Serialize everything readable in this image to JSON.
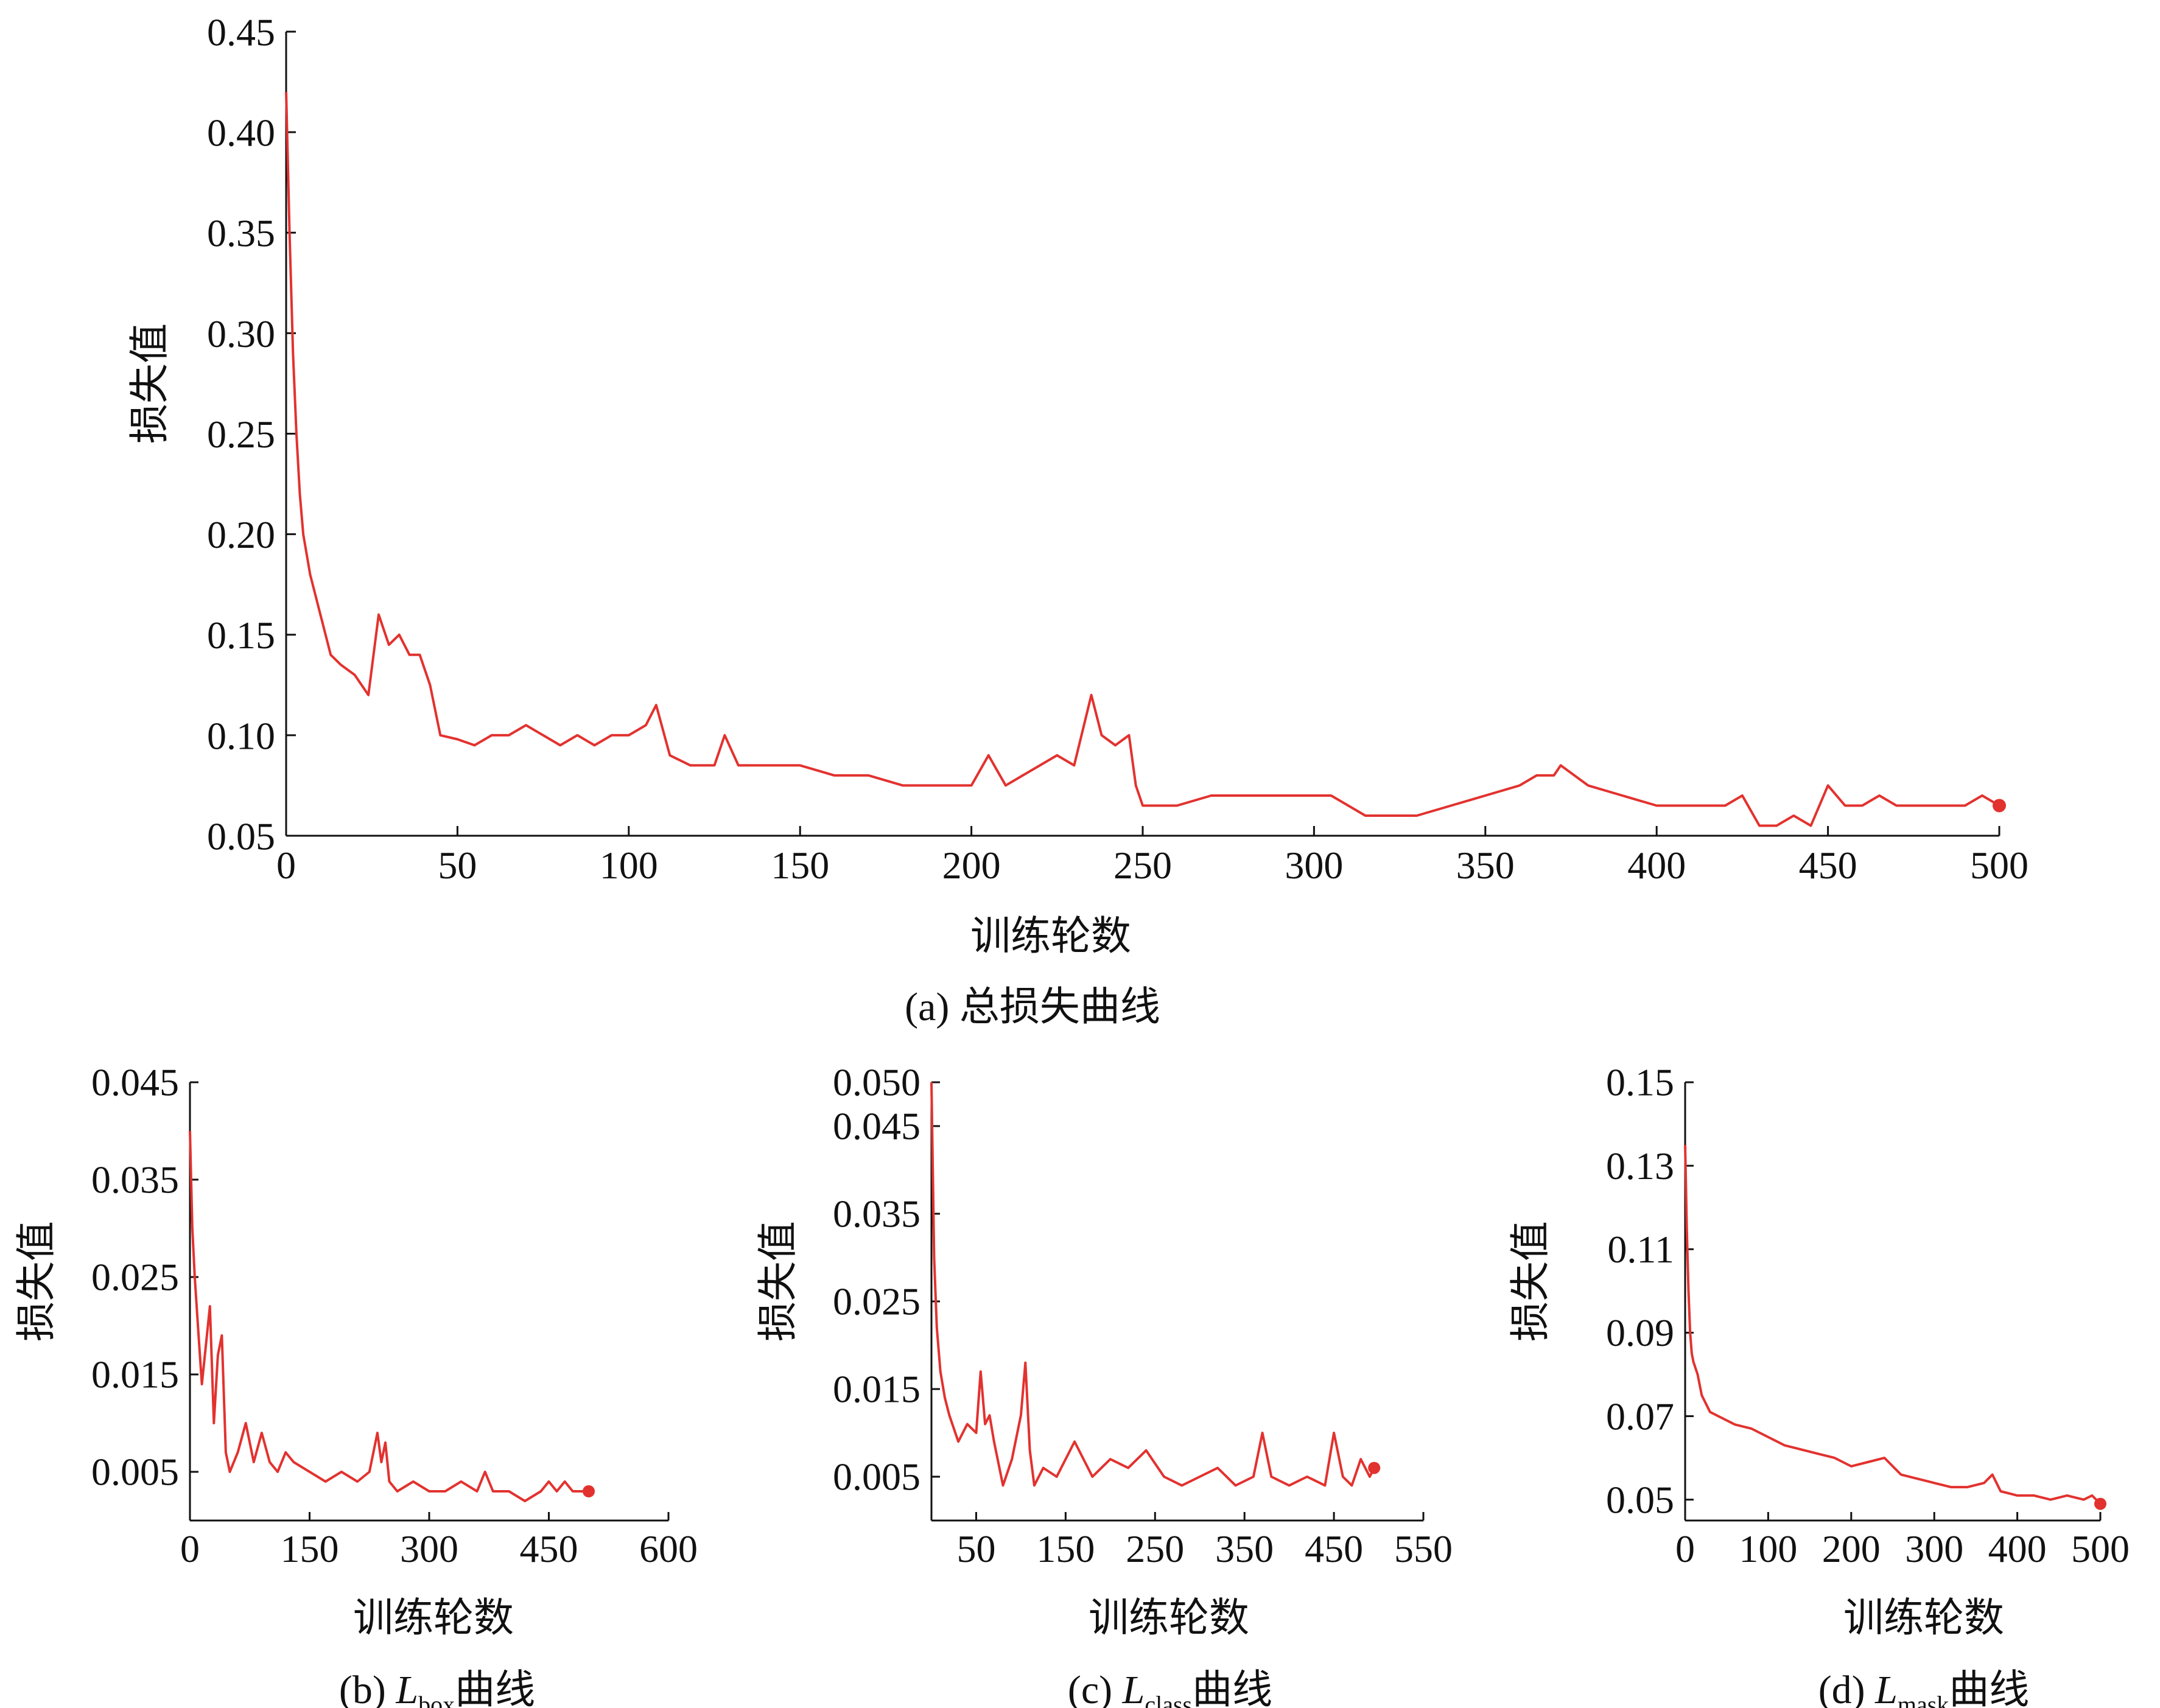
{
  "colors": {
    "line": "#e2322f",
    "axis": "#111111",
    "text": "#111111"
  },
  "chart_data": [
    {
      "id": "a",
      "type": "line",
      "caption": "(a) 总损失曲线",
      "xlabel": "训练轮数",
      "ylabel": "损失值",
      "xlim": [
        0,
        500
      ],
      "ylim": [
        0.05,
        0.45
      ],
      "xticks": [
        "0",
        "50",
        "100",
        "150",
        "200",
        "250",
        "300",
        "350",
        "400",
        "450",
        "500"
      ],
      "yticks": [
        "0.05",
        "0.10",
        "0.15",
        "0.20",
        "0.25",
        "0.30",
        "0.35",
        "0.40",
        "0.45"
      ],
      "grid": false,
      "series": [
        {
          "x": [
            0,
            1,
            2,
            3,
            4,
            5,
            7,
            10,
            13,
            16,
            20,
            24,
            27,
            30,
            33,
            36,
            39,
            42,
            45,
            50,
            55,
            60,
            65,
            70,
            75,
            80,
            85,
            90,
            95,
            100,
            105,
            108,
            112,
            118,
            125,
            128,
            132,
            140,
            150,
            160,
            170,
            180,
            190,
            200,
            205,
            210,
            215,
            220,
            225,
            230,
            235,
            238,
            242,
            246,
            248,
            250,
            255,
            260,
            270,
            280,
            290,
            300,
            305,
            310,
            315,
            320,
            325,
            330,
            340,
            350,
            360,
            365,
            370,
            372,
            380,
            390,
            400,
            410,
            420,
            425,
            430,
            435,
            440,
            445,
            450,
            455,
            460,
            465,
            470,
            475,
            480,
            490,
            495,
            500
          ],
          "y": [
            0.42,
            0.35,
            0.29,
            0.25,
            0.22,
            0.2,
            0.18,
            0.16,
            0.14,
            0.135,
            0.13,
            0.12,
            0.16,
            0.145,
            0.15,
            0.14,
            0.14,
            0.125,
            0.1,
            0.098,
            0.095,
            0.1,
            0.1,
            0.105,
            0.1,
            0.095,
            0.1,
            0.095,
            0.1,
            0.1,
            0.105,
            0.115,
            0.09,
            0.085,
            0.085,
            0.1,
            0.085,
            0.085,
            0.085,
            0.08,
            0.08,
            0.075,
            0.075,
            0.075,
            0.09,
            0.075,
            0.08,
            0.085,
            0.09,
            0.085,
            0.12,
            0.1,
            0.095,
            0.1,
            0.075,
            0.065,
            0.065,
            0.065,
            0.07,
            0.07,
            0.07,
            0.07,
            0.07,
            0.065,
            0.06,
            0.06,
            0.06,
            0.06,
            0.065,
            0.07,
            0.075,
            0.08,
            0.08,
            0.085,
            0.075,
            0.07,
            0.065,
            0.065,
            0.065,
            0.07,
            0.055,
            0.055,
            0.06,
            0.055,
            0.075,
            0.065,
            0.065,
            0.07,
            0.065,
            0.065,
            0.065,
            0.065,
            0.07,
            0.065
          ]
        }
      ]
    },
    {
      "id": "b",
      "type": "line",
      "caption": "(b) ",
      "caption_symbol": "L",
      "caption_subscript": "box",
      "caption_suffix": "曲线",
      "xlabel": "训练轮数",
      "ylabel": "损失值",
      "xlim": [
        0,
        600
      ],
      "ylim": [
        0.0,
        0.045
      ],
      "xticks": [
        "0",
        "150",
        "300",
        "450",
        "600"
      ],
      "yticks": [
        "0.005",
        "0.015",
        "0.025",
        "0.035",
        "0.045"
      ],
      "grid": false,
      "series": [
        {
          "x": [
            0,
            3,
            6,
            10,
            15,
            20,
            25,
            30,
            35,
            40,
            45,
            50,
            60,
            70,
            80,
            90,
            100,
            110,
            120,
            130,
            150,
            170,
            190,
            210,
            225,
            235,
            240,
            245,
            250,
            260,
            280,
            300,
            320,
            340,
            360,
            370,
            380,
            400,
            420,
            440,
            450,
            460,
            470,
            480,
            490,
            500
          ],
          "y": [
            0.04,
            0.03,
            0.025,
            0.02,
            0.014,
            0.018,
            0.022,
            0.01,
            0.017,
            0.019,
            0.007,
            0.005,
            0.007,
            0.01,
            0.006,
            0.009,
            0.006,
            0.005,
            0.007,
            0.006,
            0.005,
            0.004,
            0.005,
            0.004,
            0.005,
            0.009,
            0.006,
            0.008,
            0.004,
            0.003,
            0.004,
            0.003,
            0.003,
            0.004,
            0.003,
            0.005,
            0.003,
            0.003,
            0.002,
            0.003,
            0.004,
            0.003,
            0.004,
            0.003,
            0.003,
            0.003
          ]
        }
      ]
    },
    {
      "id": "c",
      "type": "line",
      "caption": "(c) ",
      "caption_symbol": "L",
      "caption_subscript": "class",
      "caption_suffix": "曲线",
      "xlabel": "训练轮数",
      "ylabel": "损失值",
      "xlim": [
        0,
        550
      ],
      "ylim": [
        0.0,
        0.05
      ],
      "xticks": [
        "50",
        "150",
        "250",
        "350",
        "450",
        "550"
      ],
      "xtick_values": [
        50,
        150,
        250,
        350,
        450,
        550
      ],
      "yticks": [
        "0.005",
        "0.015",
        "0.025",
        "0.035",
        "0.045",
        "0.050"
      ],
      "ytick_values": [
        0.005,
        0.015,
        0.025,
        0.035,
        0.045,
        0.05
      ],
      "grid": false,
      "series": [
        {
          "x": [
            0,
            3,
            6,
            10,
            15,
            20,
            30,
            40,
            50,
            55,
            60,
            65,
            70,
            80,
            90,
            100,
            105,
            110,
            115,
            125,
            140,
            160,
            180,
            200,
            220,
            240,
            260,
            280,
            300,
            320,
            340,
            360,
            370,
            380,
            400,
            420,
            440,
            450,
            460,
            470,
            480,
            490,
            495
          ],
          "y": [
            0.05,
            0.03,
            0.022,
            0.017,
            0.014,
            0.012,
            0.009,
            0.011,
            0.01,
            0.017,
            0.011,
            0.012,
            0.009,
            0.004,
            0.007,
            0.012,
            0.018,
            0.008,
            0.004,
            0.006,
            0.005,
            0.009,
            0.005,
            0.007,
            0.006,
            0.008,
            0.005,
            0.004,
            0.005,
            0.006,
            0.004,
            0.005,
            0.01,
            0.005,
            0.004,
            0.005,
            0.004,
            0.01,
            0.005,
            0.004,
            0.007,
            0.005,
            0.006
          ]
        }
      ]
    },
    {
      "id": "d",
      "type": "line",
      "caption": "(d) ",
      "caption_symbol": "L",
      "caption_subscript": "mask",
      "caption_suffix": "曲线",
      "xlabel": "训练轮数",
      "ylabel": "损失值",
      "xlim": [
        0,
        500
      ],
      "ylim": [
        0.045,
        0.15
      ],
      "xticks": [
        "0",
        "100",
        "200",
        "300",
        "400",
        "500"
      ],
      "yticks": [
        "0.05",
        "0.07",
        "0.09",
        "0.11",
        "0.13",
        "0.15"
      ],
      "ytick_values": [
        0.05,
        0.07,
        0.09,
        0.11,
        0.13,
        0.15
      ],
      "grid": false,
      "series": [
        {
          "x": [
            0,
            2,
            4,
            6,
            8,
            10,
            15,
            20,
            30,
            40,
            60,
            80,
            100,
            120,
            140,
            160,
            180,
            200,
            220,
            240,
            260,
            280,
            300,
            320,
            340,
            360,
            370,
            380,
            400,
            420,
            440,
            460,
            480,
            490,
            500
          ],
          "y": [
            0.135,
            0.115,
            0.1,
            0.09,
            0.085,
            0.083,
            0.08,
            0.075,
            0.071,
            0.07,
            0.068,
            0.067,
            0.065,
            0.063,
            0.062,
            0.061,
            0.06,
            0.058,
            0.059,
            0.06,
            0.056,
            0.055,
            0.054,
            0.053,
            0.053,
            0.054,
            0.056,
            0.052,
            0.051,
            0.051,
            0.05,
            0.051,
            0.05,
            0.051,
            0.049
          ]
        }
      ]
    }
  ]
}
